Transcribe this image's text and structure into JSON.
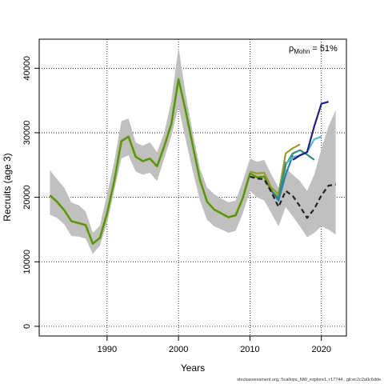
{
  "chart_data": {
    "type": "line",
    "xlabel": "Years",
    "ylabel": "Recruits (age 3)",
    "xlim": [
      1980.5,
      2023.5
    ],
    "ylim": [
      -1500,
      44500
    ],
    "x_ticks": [
      1990,
      2000,
      2010,
      2020
    ],
    "y_ticks": [
      0,
      10000,
      20000,
      30000,
      40000
    ],
    "grid": "dotted",
    "annotation": {
      "rho_symbol": "ρ",
      "rho_subscript": "Mohn",
      "rho_text": " = 51%"
    },
    "band": {
      "name": "confidence interval",
      "color": "#c0c0c0",
      "x": [
        1982,
        1983,
        1984,
        1985,
        1986,
        1987,
        1988,
        1989,
        1990,
        1991,
        1992,
        1993,
        1994,
        1995,
        1996,
        1997,
        1998,
        1999,
        2000,
        2001,
        2002,
        2003,
        2004,
        2005,
        2006,
        2007,
        2008,
        2009,
        2010,
        2011,
        2012,
        2013,
        2014,
        2015,
        2016,
        2017,
        2018,
        2019,
        2020,
        2021,
        2022
      ],
      "lower": [
        17300,
        16800,
        15800,
        14000,
        13900,
        13600,
        11200,
        12500,
        16000,
        21000,
        26000,
        26500,
        24000,
        23500,
        23800,
        22500,
        26000,
        29500,
        34000,
        29000,
        24000,
        19500,
        16500,
        15500,
        15000,
        14500,
        14800,
        17500,
        21000,
        20000,
        19500,
        17500,
        15500,
        18500,
        17000,
        15500,
        13800,
        14500,
        15500,
        15000,
        14200
      ],
      "upper": [
        24200,
        22800,
        21500,
        19200,
        18800,
        17800,
        14500,
        15600,
        20500,
        25500,
        31800,
        32200,
        28500,
        28000,
        28500,
        27000,
        30000,
        35000,
        43300,
        36000,
        30000,
        24500,
        21500,
        20500,
        19800,
        19200,
        19500,
        22500,
        26000,
        25500,
        25800,
        23500,
        21500,
        24500,
        23500,
        22500,
        21000,
        23500,
        27500,
        31000,
        33500
      ]
    },
    "series": [
      {
        "color": "#4f8f2f",
        "x": [
          1982,
          1983,
          1984,
          1985,
          1986,
          1987,
          1988,
          1989,
          1990,
          1991,
          1992,
          1993,
          1994,
          1995,
          1996,
          1997,
          1998,
          1999,
          2000,
          2001,
          2002,
          2003,
          2004,
          2005,
          2006,
          2007,
          2008,
          2009,
          2010,
          2011,
          2012,
          2013,
          2014,
          2015
        ],
        "y": [
          20300,
          19300,
          18000,
          16300,
          16000,
          15700,
          12800,
          13700,
          17500,
          22500,
          28700,
          29400,
          26300,
          25600,
          26000,
          24800,
          27900,
          31400,
          38300,
          33400,
          28000,
          22700,
          19300,
          18100,
          17500,
          16900,
          17200,
          19900,
          23700,
          23100,
          23200,
          21000,
          19900,
          25500
        ]
      },
      {
        "color": "#9a9a2e",
        "x": [
          2010,
          2011,
          2012,
          2013,
          2014,
          2015,
          2016,
          2017
        ],
        "y": [
          24000,
          23700,
          23800,
          21500,
          20500,
          26800,
          27600,
          28200
        ]
      },
      {
        "color": "#2b7fb0",
        "x": [
          2013,
          2014,
          2015,
          2016
        ],
        "y": [
          21000,
          19500,
          23500,
          26500
        ]
      },
      {
        "color": "#2f8f78",
        "x": [
          2014,
          2015,
          2016,
          2017,
          2018,
          2019
        ],
        "y": [
          20000,
          25000,
          26800,
          27300,
          26600,
          25800
        ]
      },
      {
        "color": "#5ab7d8",
        "x": [
          2015,
          2016,
          2017,
          2018,
          2019,
          2020
        ],
        "y": [
          25200,
          26200,
          26500,
          27000,
          29000,
          29400
        ]
      },
      {
        "color": "#1f1f7f",
        "x": [
          2016,
          2017,
          2018,
          2019,
          2020,
          2021
        ],
        "y": [
          25800,
          26500,
          27000,
          31000,
          34500,
          34800
        ]
      },
      {
        "color": "#222222",
        "x": [
          2010,
          2011,
          2012,
          2013,
          2014,
          2015,
          2016,
          2017,
          2018,
          2019,
          2020,
          2021,
          2022
        ],
        "y": [
          23200,
          22900,
          22800,
          20800,
          18500,
          21000,
          20200,
          18600,
          16800,
          18200,
          20300,
          21800,
          22000
        ]
      }
    ],
    "dashed_series_index": 6
  },
  "footer_text": "stockassessment.org, Scallops_NW_explore1, r17744 , git:ec2c2a0c6dde"
}
